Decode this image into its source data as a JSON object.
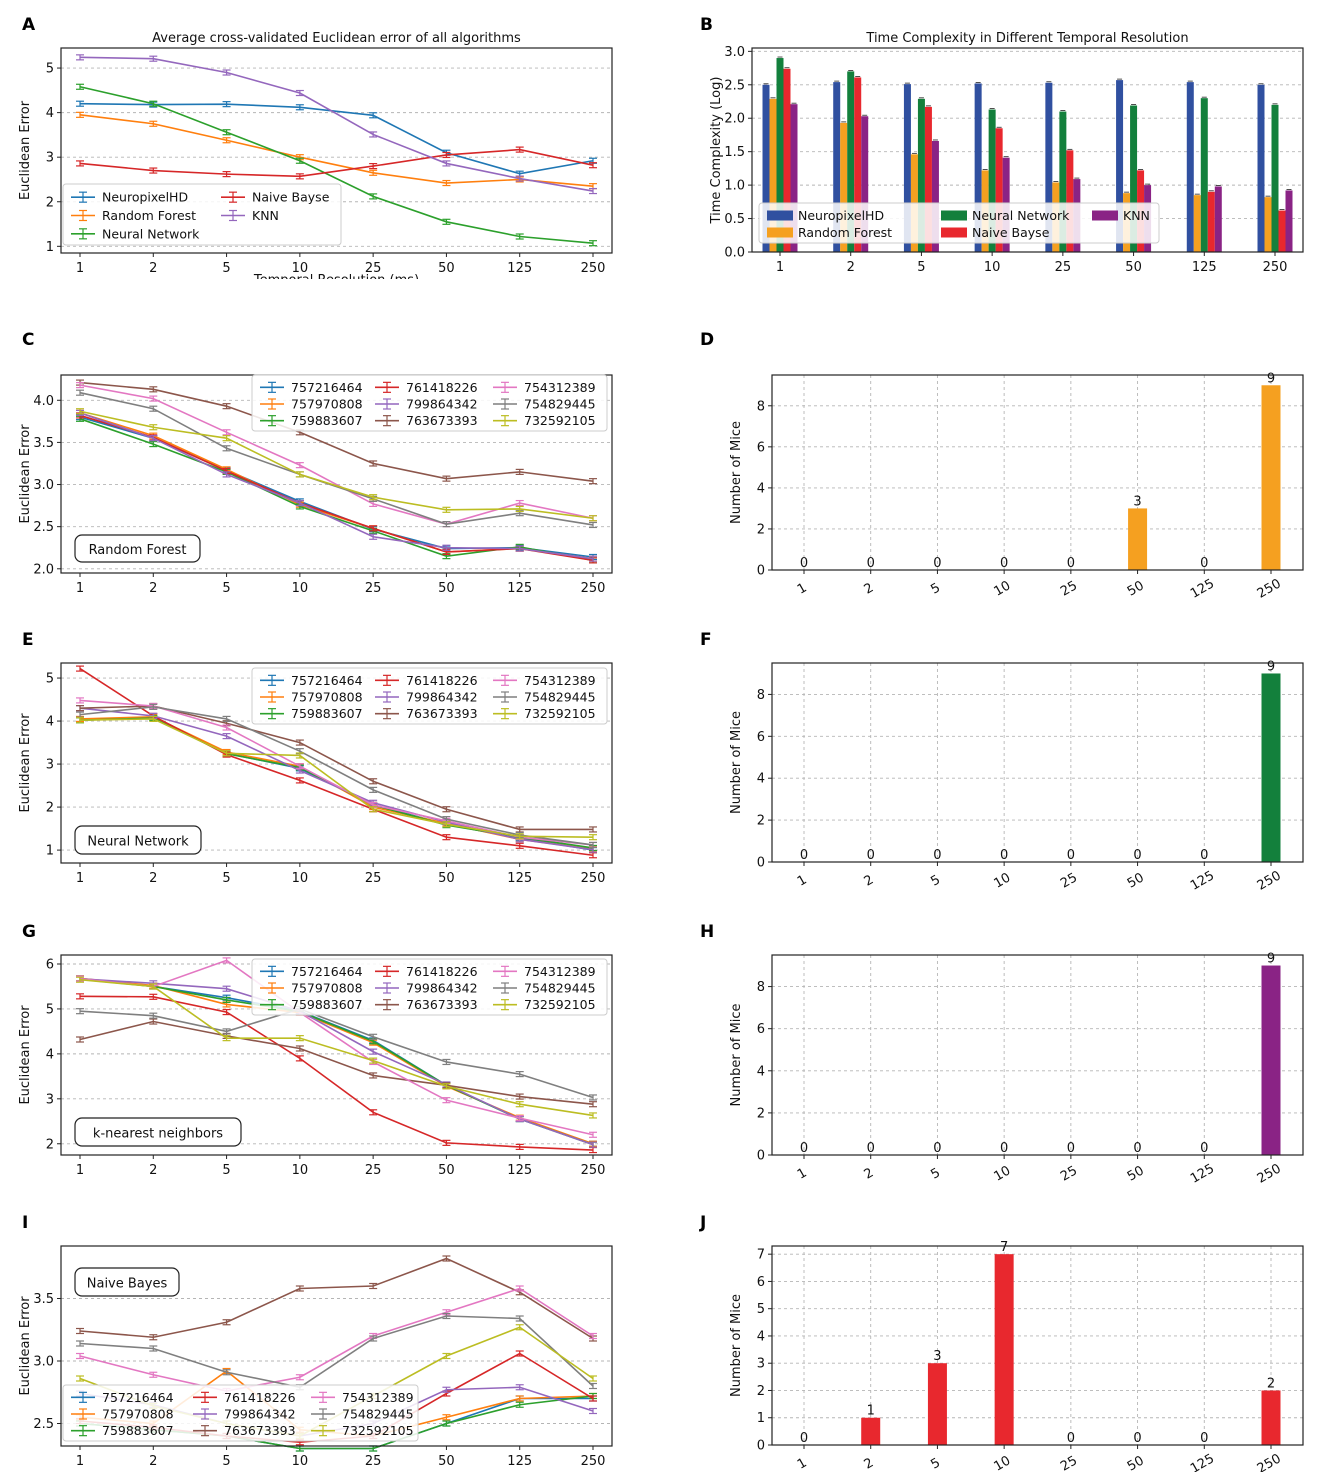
{
  "figure": {
    "panel_letters": [
      "A",
      "B",
      "C",
      "D",
      "E",
      "F",
      "G",
      "H",
      "I",
      "J"
    ],
    "colors": {
      "757216464": "#1f77b4",
      "757970808": "#ff7f0e",
      "759883607": "#2ca02c",
      "761418226": "#d62728",
      "799864342": "#9467bd",
      "763673393": "#8c564b",
      "754312389": "#e377c2",
      "754829445": "#7f7f7f",
      "732592105": "#bcbd22",
      "NeuropixelHD": "#3050a0",
      "Random Forest": "#f5a020",
      "Neural Network": "#13803c",
      "Naive Bayse": "#e8282e",
      "KNN": "#8a2385"
    }
  },
  "chart_data": [
    {
      "id": "A",
      "type": "line",
      "title": "Average cross-validated Euclidean error of all algorithms",
      "xlabel": "Temporal Resolution (ms)",
      "ylabel": "Euclidean Error",
      "categories": [
        "1",
        "2",
        "5",
        "10",
        "25",
        "50",
        "125",
        "250"
      ],
      "yticks": [
        1,
        2,
        3,
        4,
        5
      ],
      "ylim": [
        0.85,
        5.45
      ],
      "legend_columns": 2,
      "series": [
        {
          "name": "NeuropixelHD",
          "color": "#1f77b4",
          "values": [
            4.2,
            4.18,
            4.19,
            4.12,
            3.94,
            3.1,
            2.63,
            2.92
          ]
        },
        {
          "name": "Random Forest",
          "color": "#ff7f0e",
          "values": [
            3.95,
            3.75,
            3.38,
            3.0,
            2.65,
            2.42,
            2.5,
            2.35
          ]
        },
        {
          "name": "Neural Network",
          "color": "#2ca02c",
          "values": [
            4.58,
            4.2,
            3.56,
            2.92,
            2.12,
            1.55,
            1.22,
            1.07
          ]
        },
        {
          "name": "Naive Bayse",
          "color": "#d62728",
          "values": [
            2.86,
            2.7,
            2.62,
            2.57,
            2.8,
            3.05,
            3.17,
            2.82
          ]
        },
        {
          "name": "KNN",
          "color": "#9467bd",
          "values": [
            5.24,
            5.21,
            4.9,
            4.44,
            3.51,
            2.86,
            2.52,
            2.24
          ]
        }
      ]
    },
    {
      "id": "B",
      "type": "bar",
      "title": "Time Complexity in Different Temporal Resolution",
      "xlabel": "",
      "ylabel": "Time Complexity (Log)",
      "categories": [
        "1",
        "2",
        "5",
        "10",
        "25",
        "50",
        "125",
        "250"
      ],
      "yticks": [
        "0.0",
        "0.5",
        "1.0",
        "1.5",
        "2.0",
        "2.5",
        "3.0"
      ],
      "ylim": [
        0,
        3.05
      ],
      "legend_columns": 3,
      "series": [
        {
          "name": "NeuropixelHD",
          "color": "#3050a0",
          "values": [
            2.5,
            2.54,
            2.51,
            2.52,
            2.53,
            2.57,
            2.54,
            2.5
          ]
        },
        {
          "name": "Random Forest",
          "color": "#f5a020",
          "values": [
            2.29,
            1.93,
            1.46,
            1.22,
            1.04,
            0.88,
            0.85,
            0.82
          ]
        },
        {
          "name": "Neural Network",
          "color": "#13803c",
          "values": [
            2.9,
            2.7,
            2.29,
            2.13,
            2.1,
            2.19,
            2.3,
            2.2
          ]
        },
        {
          "name": "Naive Bayse",
          "color": "#e8282e",
          "values": [
            2.74,
            2.61,
            2.17,
            1.85,
            1.52,
            1.22,
            0.9,
            0.62
          ]
        },
        {
          "name": "KNN",
          "color": "#8a2385",
          "values": [
            2.21,
            2.03,
            1.66,
            1.41,
            1.09,
            1.0,
            0.98,
            0.92
          ]
        }
      ]
    },
    {
      "id": "C",
      "type": "line",
      "label": "Random Forest",
      "xlabel": "",
      "ylabel": "Euclidean Error",
      "categories": [
        "1",
        "2",
        "5",
        "10",
        "25",
        "50",
        "125",
        "250"
      ],
      "yticks": [
        "2.0",
        "2.5",
        "3.0",
        "3.5",
        "4.0"
      ],
      "ylim": [
        1.95,
        4.3
      ],
      "legend_columns": 3,
      "series": [
        {
          "name": "757216464",
          "values": [
            3.8,
            3.55,
            3.17,
            2.8,
            2.47,
            2.24,
            2.25,
            2.14
          ]
        },
        {
          "name": "757970808",
          "values": [
            3.85,
            3.58,
            3.18,
            2.76,
            2.48,
            2.2,
            2.24,
            2.12
          ]
        },
        {
          "name": "759883607",
          "values": [
            3.78,
            3.48,
            3.15,
            2.74,
            2.45,
            2.15,
            2.26,
            2.1
          ]
        },
        {
          "name": "761418226",
          "values": [
            3.82,
            3.56,
            3.16,
            2.78,
            2.48,
            2.2,
            2.24,
            2.1
          ]
        },
        {
          "name": "799864342",
          "values": [
            3.85,
            3.55,
            3.12,
            2.78,
            2.38,
            2.25,
            2.24,
            2.12
          ]
        },
        {
          "name": "763673393",
          "values": [
            4.21,
            4.13,
            3.93,
            3.62,
            3.25,
            3.07,
            3.15,
            3.04
          ]
        },
        {
          "name": "754312389",
          "values": [
            4.18,
            4.02,
            3.62,
            3.23,
            2.77,
            2.53,
            2.78,
            2.6
          ]
        },
        {
          "name": "754829445",
          "values": [
            4.09,
            3.9,
            3.43,
            3.12,
            2.83,
            2.53,
            2.66,
            2.52
          ]
        },
        {
          "name": "732592105",
          "values": [
            3.87,
            3.68,
            3.55,
            3.12,
            2.85,
            2.7,
            2.71,
            2.6
          ]
        }
      ]
    },
    {
      "id": "D",
      "type": "bar",
      "xlabel": "",
      "ylabel": "Number of Mice",
      "categories": [
        "1",
        "2",
        "5",
        "10",
        "25",
        "50",
        "125",
        "250"
      ],
      "values": [
        0,
        0,
        0,
        0,
        0,
        3,
        0,
        9
      ],
      "yticks": [
        0,
        2,
        4,
        6,
        8
      ],
      "ylim": [
        0,
        9.5
      ],
      "color": "#f5a020"
    },
    {
      "id": "E",
      "type": "line",
      "label": "Neural Network",
      "xlabel": "",
      "ylabel": "Euclidean Error",
      "categories": [
        "1",
        "2",
        "5",
        "10",
        "25",
        "50",
        "125",
        "250"
      ],
      "yticks": [
        1,
        2,
        3,
        4,
        5
      ],
      "ylim": [
        0.7,
        5.35
      ],
      "legend_columns": 3,
      "series": [
        {
          "name": "757216464",
          "values": [
            4.02,
            4.08,
            3.25,
            2.9,
            2.05,
            1.6,
            1.28,
            1.0
          ]
        },
        {
          "name": "757970808",
          "values": [
            4.05,
            4.1,
            3.28,
            2.95,
            2.0,
            1.62,
            1.25,
            1.02
          ]
        },
        {
          "name": "759883607",
          "values": [
            4.02,
            4.07,
            3.24,
            2.92,
            2.05,
            1.58,
            1.3,
            1.05
          ]
        },
        {
          "name": "761418226",
          "values": [
            5.22,
            4.12,
            3.22,
            2.62,
            1.95,
            1.3,
            1.1,
            0.88
          ]
        },
        {
          "name": "799864342",
          "values": [
            4.3,
            4.12,
            3.65,
            2.85,
            2.1,
            1.65,
            1.25,
            1.01
          ]
        },
        {
          "name": "763673393",
          "values": [
            4.3,
            4.35,
            3.95,
            3.5,
            2.6,
            1.95,
            1.48,
            1.48
          ]
        },
        {
          "name": "754312389",
          "values": [
            4.48,
            4.35,
            3.85,
            2.95,
            2.05,
            1.68,
            1.3,
            1.12
          ]
        },
        {
          "name": "754829445",
          "values": [
            4.15,
            4.33,
            4.05,
            3.3,
            2.4,
            1.72,
            1.35,
            1.12
          ]
        },
        {
          "name": "732592105",
          "values": [
            4.02,
            4.05,
            3.25,
            3.2,
            1.95,
            1.6,
            1.32,
            1.3
          ]
        }
      ]
    },
    {
      "id": "F",
      "type": "bar",
      "xlabel": "",
      "ylabel": "Number of Mice",
      "categories": [
        "1",
        "2",
        "5",
        "10",
        "25",
        "50",
        "125",
        "250"
      ],
      "values": [
        0,
        0,
        0,
        0,
        0,
        0,
        0,
        9
      ],
      "yticks": [
        0,
        2,
        4,
        6,
        8
      ],
      "ylim": [
        0,
        9.5
      ],
      "color": "#13803c"
    },
    {
      "id": "G",
      "type": "line",
      "label": "k-nearest neighbors",
      "xlabel": "",
      "ylabel": "Euclidean Error",
      "categories": [
        "1",
        "2",
        "5",
        "10",
        "25",
        "50",
        "125",
        "250"
      ],
      "yticks": [
        2,
        3,
        4,
        5,
        6
      ],
      "ylim": [
        1.75,
        6.2
      ],
      "legend_columns": 3,
      "series": [
        {
          "name": "757216464",
          "values": [
            5.68,
            5.5,
            5.25,
            4.95,
            4.3,
            3.3,
            2.55,
            2.0
          ]
        },
        {
          "name": "757970808",
          "values": [
            5.68,
            5.52,
            5.1,
            4.92,
            4.25,
            3.28,
            2.58,
            2.0
          ]
        },
        {
          "name": "759883607",
          "values": [
            5.66,
            5.5,
            5.2,
            4.94,
            4.28,
            3.3,
            2.55,
            1.98
          ]
        },
        {
          "name": "761418226",
          "values": [
            5.28,
            5.27,
            4.93,
            3.9,
            2.7,
            2.02,
            1.93,
            1.86
          ]
        },
        {
          "name": "799864342",
          "values": [
            5.67,
            5.57,
            5.45,
            4.95,
            4.05,
            3.32,
            2.55,
            1.98
          ]
        },
        {
          "name": "763673393",
          "values": [
            4.32,
            4.72,
            4.4,
            4.12,
            3.52,
            3.3,
            3.05,
            2.88
          ]
        },
        {
          "name": "754312389",
          "values": [
            5.67,
            5.5,
            6.08,
            4.92,
            3.82,
            2.97,
            2.57,
            2.2
          ]
        },
        {
          "name": "754829445",
          "values": [
            4.95,
            4.85,
            4.5,
            5.0,
            4.38,
            3.82,
            3.55,
            3.03
          ]
        },
        {
          "name": "732592105",
          "values": [
            5.65,
            5.5,
            4.35,
            4.35,
            3.85,
            3.28,
            2.88,
            2.63
          ]
        }
      ]
    },
    {
      "id": "H",
      "type": "bar",
      "xlabel": "",
      "ylabel": "Number of Mice",
      "categories": [
        "1",
        "2",
        "5",
        "10",
        "25",
        "50",
        "125",
        "250"
      ],
      "values": [
        0,
        0,
        0,
        0,
        0,
        0,
        0,
        9
      ],
      "yticks": [
        0,
        2,
        4,
        6,
        8
      ],
      "ylim": [
        0,
        9.5
      ],
      "color": "#8a2385"
    },
    {
      "id": "I",
      "type": "line",
      "label": "Naive Bayes",
      "xlabel": "",
      "ylabel": "Euclidean Error",
      "categories": [
        "1",
        "2",
        "5",
        "10",
        "25",
        "50",
        "125",
        "250"
      ],
      "yticks": [
        "2.5",
        "3.0",
        "3.5"
      ],
      "ylim": [
        2.32,
        3.92
      ],
      "legend_columns": 3,
      "series": [
        {
          "name": "757216464",
          "values": [
            2.5,
            2.45,
            2.4,
            2.3,
            2.3,
            2.5,
            2.7,
            2.7
          ]
        },
        {
          "name": "757970808",
          "values": [
            2.55,
            2.5,
            2.92,
            2.45,
            2.4,
            2.55,
            2.7,
            2.72
          ]
        },
        {
          "name": "759883607",
          "values": [
            2.5,
            2.45,
            2.4,
            2.3,
            2.3,
            2.5,
            2.65,
            2.72
          ]
        },
        {
          "name": "761418226",
          "values": [
            2.52,
            2.47,
            2.4,
            2.35,
            2.4,
            2.74,
            3.06,
            2.7
          ]
        },
        {
          "name": "799864342",
          "values": [
            2.74,
            2.65,
            2.5,
            2.4,
            2.5,
            2.77,
            2.79,
            2.6
          ]
        },
        {
          "name": "763673393",
          "values": [
            3.24,
            3.19,
            3.31,
            3.58,
            3.6,
            3.82,
            3.55,
            3.18
          ]
        },
        {
          "name": "754312389",
          "values": [
            3.04,
            2.89,
            2.76,
            2.87,
            3.2,
            3.39,
            3.58,
            3.2
          ]
        },
        {
          "name": "754829445",
          "values": [
            3.14,
            3.1,
            2.91,
            2.79,
            3.18,
            3.36,
            3.34,
            2.8
          ]
        },
        {
          "name": "732592105",
          "values": [
            2.86,
            2.64,
            2.5,
            2.4,
            2.72,
            3.04,
            3.27,
            2.86
          ]
        }
      ]
    },
    {
      "id": "J",
      "type": "bar",
      "xlabel": "",
      "ylabel": "Number of Mice",
      "categories": [
        "1",
        "2",
        "5",
        "10",
        "25",
        "50",
        "125",
        "250"
      ],
      "values": [
        0,
        1,
        3,
        7,
        0,
        0,
        0,
        2
      ],
      "yticks": [
        0,
        1,
        2,
        3,
        4,
        5,
        6,
        7
      ],
      "ylim": [
        0,
        7.3
      ],
      "color": "#e8282e"
    }
  ]
}
